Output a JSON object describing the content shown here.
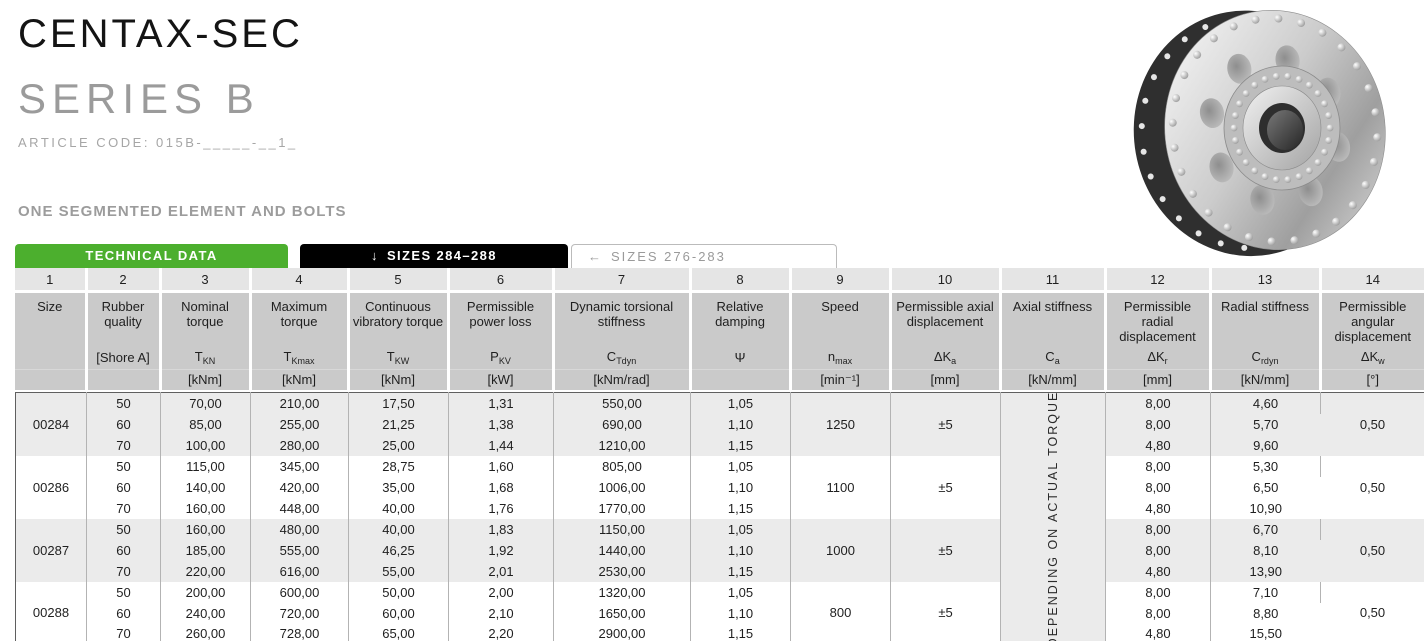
{
  "page": {
    "title": "CENTAX-SEC",
    "subtitle": "SERIES B",
    "article_code": "ARTICLE CODE: 015B-_____-__1_",
    "section_label": "ONE SEGMENTED ELEMENT AND BOLTS"
  },
  "tabs": [
    {
      "label": "TECHNICAL DATA",
      "icon": "",
      "state": "active-green"
    },
    {
      "label": "SIZES 284–288",
      "icon": "↓",
      "state": "active-black"
    },
    {
      "label": "SIZES 276-283",
      "icon": "←",
      "state": "inactive"
    }
  ],
  "colors": {
    "accent_green": "#4caf2e",
    "tab_black": "#000000",
    "tab_inactive_text": "#9a9a9a",
    "header_gray": "#cacaca",
    "number_row_gray": "#e5e5e5",
    "band_gray": "#ebebeb",
    "grid_line": "#b3b3b3",
    "table_border": "#5f5f5f",
    "muted_text": "#9c9c9c"
  },
  "product_image": {
    "alt": "CENTAX-SEC coupling with segmented element and bolts"
  },
  "table": {
    "columns": [
      {
        "number": "1",
        "name": "Size",
        "symbol": "",
        "sub": "",
        "unit": ""
      },
      {
        "number": "2",
        "name": "Rubber quality",
        "symbol": "[Shore A]",
        "sub": "",
        "unit": ""
      },
      {
        "number": "3",
        "name": "Nominal torque",
        "symbol": "T",
        "sub": "KN",
        "unit": "[kNm]"
      },
      {
        "number": "4",
        "name": "Maximum torque",
        "symbol": "T",
        "sub": "Kmax",
        "unit": "[kNm]"
      },
      {
        "number": "5",
        "name": "Continuous vibratory torque",
        "symbol": "T",
        "sub": "KW",
        "unit": "[kNm]"
      },
      {
        "number": "6",
        "name": "Permissible power loss",
        "symbol": "P",
        "sub": "KV",
        "unit": "[kW]"
      },
      {
        "number": "7",
        "name": "Dynamic torsional stiffness",
        "symbol": "C",
        "sub": "Tdyn",
        "unit": "[kNm/rad]"
      },
      {
        "number": "8",
        "name": "Relative damping",
        "symbol": "Ψ",
        "sub": "",
        "unit": ""
      },
      {
        "number": "9",
        "name": "Speed",
        "symbol": "n",
        "sub": "max",
        "unit": "[min⁻¹]"
      },
      {
        "number": "10",
        "name": "Permissible axial displacement",
        "symbol": "ΔK",
        "sub": "a",
        "unit": "[mm]"
      },
      {
        "number": "11",
        "name": "Axial stiffness",
        "symbol": "C",
        "sub": "a",
        "unit": "[kN/mm]"
      },
      {
        "number": "12",
        "name": "Permissible radial displacement",
        "symbol": "ΔK",
        "sub": "r",
        "unit": "[mm]"
      },
      {
        "number": "13",
        "name": "Radial stiffness",
        "symbol": "C",
        "sub": "rdyn",
        "unit": "[kN/mm]"
      },
      {
        "number": "14",
        "name": "Permissible angular displacement",
        "symbol": "ΔK",
        "sub": "w",
        "unit": "[°]"
      }
    ],
    "vertical_note": "DEPENDING ON ACTUAL TORQUE",
    "groups": [
      {
        "size": "00284",
        "speed": "1250",
        "axial_displacement": "±5",
        "angular_displacement": "0,50",
        "rows": [
          {
            "shore": "50",
            "nominal_torque": "70,00",
            "maximum_torque": "210,00",
            "vibratory_torque": "17,50",
            "power_loss": "1,31",
            "torsional_stiffness": "550,00",
            "damping": "1,05",
            "radial_displacement": "8,00",
            "radial_stiffness": "4,60"
          },
          {
            "shore": "60",
            "nominal_torque": "85,00",
            "maximum_torque": "255,00",
            "vibratory_torque": "21,25",
            "power_loss": "1,38",
            "torsional_stiffness": "690,00",
            "damping": "1,10",
            "radial_displacement": "8,00",
            "radial_stiffness": "5,70"
          },
          {
            "shore": "70",
            "nominal_torque": "100,00",
            "maximum_torque": "280,00",
            "vibratory_torque": "25,00",
            "power_loss": "1,44",
            "torsional_stiffness": "1210,00",
            "damping": "1,15",
            "radial_displacement": "4,80",
            "radial_stiffness": "9,60"
          }
        ]
      },
      {
        "size": "00286",
        "speed": "1100",
        "axial_displacement": "±5",
        "angular_displacement": "0,50",
        "rows": [
          {
            "shore": "50",
            "nominal_torque": "115,00",
            "maximum_torque": "345,00",
            "vibratory_torque": "28,75",
            "power_loss": "1,60",
            "torsional_stiffness": "805,00",
            "damping": "1,05",
            "radial_displacement": "8,00",
            "radial_stiffness": "5,30"
          },
          {
            "shore": "60",
            "nominal_torque": "140,00",
            "maximum_torque": "420,00",
            "vibratory_torque": "35,00",
            "power_loss": "1,68",
            "torsional_stiffness": "1006,00",
            "damping": "1,10",
            "radial_displacement": "8,00",
            "radial_stiffness": "6,50"
          },
          {
            "shore": "70",
            "nominal_torque": "160,00",
            "maximum_torque": "448,00",
            "vibratory_torque": "40,00",
            "power_loss": "1,76",
            "torsional_stiffness": "1770,00",
            "damping": "1,15",
            "radial_displacement": "4,80",
            "radial_stiffness": "10,90"
          }
        ]
      },
      {
        "size": "00287",
        "speed": "1000",
        "axial_displacement": "±5",
        "angular_displacement": "0,50",
        "rows": [
          {
            "shore": "50",
            "nominal_torque": "160,00",
            "maximum_torque": "480,00",
            "vibratory_torque": "40,00",
            "power_loss": "1,83",
            "torsional_stiffness": "1150,00",
            "damping": "1,05",
            "radial_displacement": "8,00",
            "radial_stiffness": "6,70"
          },
          {
            "shore": "60",
            "nominal_torque": "185,00",
            "maximum_torque": "555,00",
            "vibratory_torque": "46,25",
            "power_loss": "1,92",
            "torsional_stiffness": "1440,00",
            "damping": "1,10",
            "radial_displacement": "8,00",
            "radial_stiffness": "8,10"
          },
          {
            "shore": "70",
            "nominal_torque": "220,00",
            "maximum_torque": "616,00",
            "vibratory_torque": "55,00",
            "power_loss": "2,01",
            "torsional_stiffness": "2530,00",
            "damping": "1,15",
            "radial_displacement": "4,80",
            "radial_stiffness": "13,90"
          }
        ]
      },
      {
        "size": "00288",
        "speed": "800",
        "axial_displacement": "±5",
        "angular_displacement": "0,50",
        "rows": [
          {
            "shore": "50",
            "nominal_torque": "200,00",
            "maximum_torque": "600,00",
            "vibratory_torque": "50,00",
            "power_loss": "2,00",
            "torsional_stiffness": "1320,00",
            "damping": "1,05",
            "radial_displacement": "8,00",
            "radial_stiffness": "7,10"
          },
          {
            "shore": "60",
            "nominal_torque": "240,00",
            "maximum_torque": "720,00",
            "vibratory_torque": "60,00",
            "power_loss": "2,10",
            "torsional_stiffness": "1650,00",
            "damping": "1,10",
            "radial_displacement": "8,00",
            "radial_stiffness": "8,80"
          },
          {
            "shore": "70",
            "nominal_torque": "260,00",
            "maximum_torque": "728,00",
            "vibratory_torque": "65,00",
            "power_loss": "2,20",
            "torsional_stiffness": "2900,00",
            "damping": "1,15",
            "radial_displacement": "4,80",
            "radial_stiffness": "15,50"
          }
        ]
      }
    ]
  }
}
